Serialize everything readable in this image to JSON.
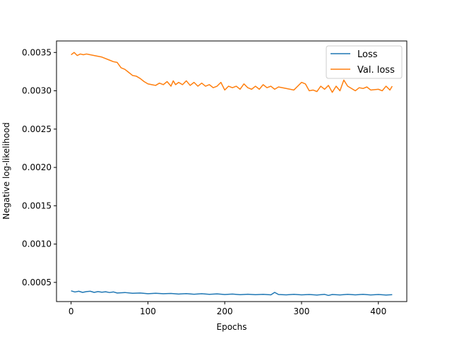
{
  "chart_data": {
    "type": "line",
    "title": "",
    "xlabel": "Epochs",
    "ylabel": "Negative log-likelihood",
    "xlim": [
      -19,
      437
    ],
    "ylim": [
      0.00025,
      0.00365
    ],
    "xticks": [
      0,
      100,
      200,
      300,
      400
    ],
    "xtick_labels": [
      "0",
      "100",
      "200",
      "300",
      "400"
    ],
    "yticks": [
      0.0005,
      0.001,
      0.0015,
      0.002,
      0.0025,
      0.003,
      0.0035
    ],
    "ytick_labels": [
      "0.0005",
      "0.0010",
      "0.0015",
      "0.0020",
      "0.0025",
      "0.0030",
      "0.0035"
    ],
    "grid": false,
    "legend_position": "top-right",
    "series": [
      {
        "name": "Loss",
        "color": "#1f77b4",
        "points": [
          [
            0,
            0.00039
          ],
          [
            5,
            0.000375
          ],
          [
            10,
            0.000385
          ],
          [
            15,
            0.00037
          ],
          [
            20,
            0.00038
          ],
          [
            25,
            0.000385
          ],
          [
            30,
            0.00037
          ],
          [
            35,
            0.00038
          ],
          [
            40,
            0.000372
          ],
          [
            45,
            0.000378
          ],
          [
            50,
            0.000368
          ],
          [
            55,
            0.000376
          ],
          [
            60,
            0.000362
          ],
          [
            70,
            0.000368
          ],
          [
            80,
            0.000358
          ],
          [
            90,
            0.000362
          ],
          [
            100,
            0.000352
          ],
          [
            110,
            0.000358
          ],
          [
            120,
            0.000352
          ],
          [
            130,
            0.000356
          ],
          [
            140,
            0.000348
          ],
          [
            150,
            0.000354
          ],
          [
            160,
            0.000346
          ],
          [
            170,
            0.000352
          ],
          [
            180,
            0.000344
          ],
          [
            190,
            0.00035
          ],
          [
            200,
            0.000342
          ],
          [
            210,
            0.000348
          ],
          [
            220,
            0.00034
          ],
          [
            230,
            0.000346
          ],
          [
            240,
            0.00034
          ],
          [
            250,
            0.000345
          ],
          [
            260,
            0.000338
          ],
          [
            265,
            0.00037
          ],
          [
            270,
            0.000342
          ],
          [
            280,
            0.000338
          ],
          [
            290,
            0.000344
          ],
          [
            300,
            0.000338
          ],
          [
            310,
            0.000342
          ],
          [
            320,
            0.000335
          ],
          [
            330,
            0.000344
          ],
          [
            335,
            0.00033
          ],
          [
            340,
            0.000342
          ],
          [
            350,
            0.000336
          ],
          [
            360,
            0.000344
          ],
          [
            370,
            0.000338
          ],
          [
            380,
            0.000344
          ],
          [
            390,
            0.000336
          ],
          [
            400,
            0.000342
          ],
          [
            410,
            0.000335
          ],
          [
            418,
            0.00034
          ]
        ]
      },
      {
        "name": "Val. loss",
        "color": "#ff7f0e",
        "points": [
          [
            0,
            0.00347
          ],
          [
            4,
            0.0035
          ],
          [
            8,
            0.00346
          ],
          [
            12,
            0.00348
          ],
          [
            16,
            0.00347
          ],
          [
            20,
            0.00348
          ],
          [
            30,
            0.00346
          ],
          [
            40,
            0.00344
          ],
          [
            50,
            0.0034
          ],
          [
            55,
            0.00338
          ],
          [
            60,
            0.00337
          ],
          [
            65,
            0.0033
          ],
          [
            70,
            0.00328
          ],
          [
            75,
            0.00324
          ],
          [
            80,
            0.0032
          ],
          [
            85,
            0.00319
          ],
          [
            90,
            0.00316
          ],
          [
            95,
            0.00312
          ],
          [
            100,
            0.00309
          ],
          [
            105,
            0.00308
          ],
          [
            110,
            0.00307
          ],
          [
            115,
            0.0031
          ],
          [
            120,
            0.00308
          ],
          [
            125,
            0.00312
          ],
          [
            130,
            0.00306
          ],
          [
            133,
            0.00313
          ],
          [
            136,
            0.00308
          ],
          [
            140,
            0.00311
          ],
          [
            145,
            0.00308
          ],
          [
            150,
            0.00313
          ],
          [
            155,
            0.00307
          ],
          [
            160,
            0.00311
          ],
          [
            165,
            0.00306
          ],
          [
            170,
            0.0031
          ],
          [
            175,
            0.00306
          ],
          [
            180,
            0.00308
          ],
          [
            185,
            0.00304
          ],
          [
            190,
            0.00306
          ],
          [
            195,
            0.00311
          ],
          [
            200,
            0.00301
          ],
          [
            205,
            0.00306
          ],
          [
            210,
            0.00304
          ],
          [
            215,
            0.00306
          ],
          [
            220,
            0.00302
          ],
          [
            225,
            0.00309
          ],
          [
            230,
            0.00304
          ],
          [
            235,
            0.00302
          ],
          [
            240,
            0.00306
          ],
          [
            245,
            0.00302
          ],
          [
            250,
            0.00308
          ],
          [
            255,
            0.00304
          ],
          [
            260,
            0.00306
          ],
          [
            265,
            0.00302
          ],
          [
            270,
            0.00305
          ],
          [
            280,
            0.00303
          ],
          [
            290,
            0.00301
          ],
          [
            300,
            0.00311
          ],
          [
            305,
            0.00309
          ],
          [
            310,
            0.003
          ],
          [
            315,
            0.00301
          ],
          [
            320,
            0.00299
          ],
          [
            325,
            0.00306
          ],
          [
            330,
            0.00302
          ],
          [
            335,
            0.00307
          ],
          [
            340,
            0.00298
          ],
          [
            345,
            0.00306
          ],
          [
            350,
            0.003
          ],
          [
            355,
            0.00314
          ],
          [
            360,
            0.00306
          ],
          [
            365,
            0.00303
          ],
          [
            370,
            0.003
          ],
          [
            375,
            0.00304
          ],
          [
            380,
            0.00303
          ],
          [
            385,
            0.00305
          ],
          [
            390,
            0.00301
          ],
          [
            400,
            0.00302
          ],
          [
            405,
            0.003
          ],
          [
            410,
            0.00306
          ],
          [
            415,
            0.00301
          ],
          [
            418,
            0.00306
          ]
        ]
      }
    ]
  }
}
